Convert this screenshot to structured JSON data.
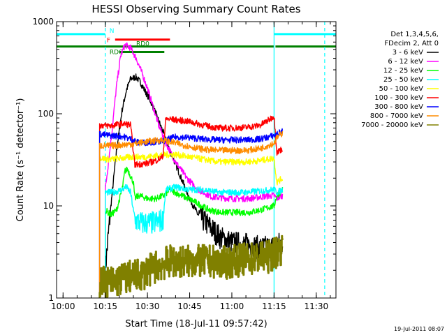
{
  "chart_data": {
    "type": "line",
    "title": "HESSI Observing Summary Count Rates",
    "xlabel": "Start Time (18-Jul-11 09:57:42)",
    "ylabel": "Count Rate (s⁻¹ detector⁻¹)",
    "xlim": [
      "09:57:42",
      "11:37:00"
    ],
    "ylim": [
      1,
      1000
    ],
    "y_scale": "log",
    "x_tick_labels": [
      "10:00",
      "10:15",
      "10:30",
      "10:45",
      "11:00",
      "11:15",
      "11:30"
    ],
    "x_tick_times": [
      "10:00",
      "10:15",
      "10:30",
      "10:45",
      "11:00",
      "11:15",
      "11:30"
    ],
    "y_tick_labels": [
      "1",
      "10",
      "100",
      "1000"
    ],
    "y_tick_values": [
      1,
      10,
      100,
      1000
    ],
    "grid": false,
    "legend_placement": "right",
    "legend_header": [
      "Det 1,3,4,5,6,",
      "FDecim 2, Att 0"
    ],
    "footer": "19-Jul-2011 08:07",
    "flags": [
      {
        "label": "N",
        "color": "#00ffff",
        "level": 0.955,
        "segments": [
          [
            "09:57:42",
            "10:15:00"
          ],
          [
            "11:15:00",
            "11:37:00"
          ]
        ]
      },
      {
        "label": "F",
        "color": "#ff0000",
        "level": 0.935,
        "segments": [
          [
            "10:18:30",
            "10:38:00"
          ]
        ]
      },
      {
        "label": "RD0",
        "color": "#008000",
        "level": 0.91,
        "segments": [
          [
            "09:57:42",
            "11:15:00"
          ],
          [
            "11:15:30",
            "11:37:00"
          ]
        ]
      },
      {
        "label": "RD6",
        "color": "#008000",
        "level": 0.89,
        "segments": [
          [
            "10:20:00",
            "10:36:00"
          ]
        ]
      }
    ],
    "vlines": [
      {
        "time": "10:15:00",
        "color": "#00ffff",
        "style": "dashed"
      },
      {
        "time": "11:15:00",
        "color": "#00ffff",
        "style": "solid"
      },
      {
        "time": "11:33:00",
        "color": "#00ffff",
        "style": "dashed"
      }
    ],
    "series": [
      {
        "name": "3 - 6 keV",
        "color": "#000000",
        "width": 1.4,
        "points": [
          [
            "10:15:00",
            2
          ],
          [
            "10:17:00",
            10
          ],
          [
            "10:19:00",
            40
          ],
          [
            "10:21:00",
            110
          ],
          [
            "10:22:30",
            180
          ],
          [
            "10:24:00",
            240
          ],
          [
            "10:26:00",
            250
          ],
          [
            "10:27:30",
            220
          ],
          [
            "10:29:00",
            180
          ],
          [
            "10:31:00",
            140
          ],
          [
            "10:33:00",
            100
          ],
          [
            "10:35:00",
            70
          ],
          [
            "10:38:00",
            40
          ],
          [
            "10:42:00",
            20
          ],
          [
            "10:45:00",
            12
          ],
          [
            "10:48:00",
            8
          ],
          [
            "10:52:00",
            6
          ],
          [
            "10:56:00",
            4.5
          ],
          [
            "11:00:00",
            4
          ],
          [
            "11:05:00",
            3.8
          ],
          [
            "11:10:00",
            3.5
          ],
          [
            "11:15:00",
            3.6
          ],
          [
            "11:16:00",
            3.8
          ],
          [
            "11:18:00",
            4
          ]
        ]
      },
      {
        "name": "6 - 12 keV",
        "color": "#ff00ff",
        "width": 1.4,
        "points": [
          [
            "10:15:00",
            15
          ],
          [
            "10:17:00",
            50
          ],
          [
            "10:19:00",
            200
          ],
          [
            "10:20:30",
            430
          ],
          [
            "10:22:00",
            560
          ],
          [
            "10:24:00",
            520
          ],
          [
            "10:26:00",
            400
          ],
          [
            "10:28:00",
            280
          ],
          [
            "10:30:00",
            190
          ],
          [
            "10:32:00",
            120
          ],
          [
            "10:34:00",
            75
          ],
          [
            "10:37:00",
            45
          ],
          [
            "10:40:00",
            30
          ],
          [
            "10:44:00",
            20
          ],
          [
            "10:48:00",
            15
          ],
          [
            "10:53:00",
            12.5
          ],
          [
            "11:00:00",
            12
          ],
          [
            "11:06:00",
            12
          ],
          [
            "11:10:00",
            12.5
          ],
          [
            "11:15:00",
            13
          ],
          [
            "11:16:00",
            12
          ],
          [
            "11:18:00",
            13
          ]
        ]
      },
      {
        "name": "12 - 25 keV",
        "color": "#00ff00",
        "width": 1.4,
        "points": [
          [
            "10:15:00",
            9
          ],
          [
            "10:17:00",
            8
          ],
          [
            "10:19:00",
            9
          ],
          [
            "10:21:00",
            15
          ],
          [
            "10:22:00",
            24
          ],
          [
            "10:23:00",
            25
          ],
          [
            "10:24:00",
            21
          ],
          [
            "10:25:00",
            18
          ],
          [
            "10:25:30",
            12
          ],
          [
            "10:27:00",
            13
          ],
          [
            "10:30:00",
            12
          ],
          [
            "10:33:00",
            12
          ],
          [
            "10:36:00",
            13
          ],
          [
            "10:38:00",
            15
          ],
          [
            "10:42:00",
            13
          ],
          [
            "10:47:00",
            11
          ],
          [
            "10:52:00",
            9
          ],
          [
            "10:56:00",
            8.5
          ],
          [
            "11:00:00",
            8.5
          ],
          [
            "11:06:00",
            8.5
          ],
          [
            "11:10:00",
            9
          ],
          [
            "11:15:00",
            10
          ],
          [
            "11:16:00",
            13
          ],
          [
            "11:18:00",
            15
          ]
        ]
      },
      {
        "name": "25 - 50 keV",
        "color": "#00ffff",
        "width": 1.4,
        "points": [
          [
            "10:15:00",
            14
          ],
          [
            "10:18:00",
            14
          ],
          [
            "10:21:00",
            15
          ],
          [
            "10:22:30",
            16
          ],
          [
            "10:24:00",
            14
          ],
          [
            "10:25:30",
            7
          ],
          [
            "10:28:00",
            6.5
          ],
          [
            "10:32:00",
            6.5
          ],
          [
            "10:35:30",
            7
          ],
          [
            "10:36:30",
            15
          ],
          [
            "10:40:00",
            16
          ],
          [
            "10:45:00",
            15
          ],
          [
            "10:50:00",
            15
          ],
          [
            "10:55:00",
            14
          ],
          [
            "11:00:00",
            14
          ],
          [
            "11:05:00",
            14
          ],
          [
            "11:10:00",
            14.5
          ],
          [
            "11:15:00",
            15
          ],
          [
            "11:16:00",
            14
          ],
          [
            "11:18:00",
            15
          ]
        ]
      },
      {
        "name": "50 - 100 keV",
        "color": "#ffff00",
        "width": 1.4,
        "points": [
          [
            "10:13:00",
            33
          ],
          [
            "10:17:00",
            32
          ],
          [
            "10:21:00",
            33
          ],
          [
            "10:25:00",
            34
          ],
          [
            "10:30:00",
            34
          ],
          [
            "10:35:00",
            36
          ],
          [
            "10:40:00",
            36
          ],
          [
            "10:45:00",
            34
          ],
          [
            "10:50:00",
            32
          ],
          [
            "10:55:00",
            30
          ],
          [
            "11:00:00",
            30
          ],
          [
            "11:05:00",
            30
          ],
          [
            "11:10:00",
            31
          ],
          [
            "11:15:00",
            33
          ],
          [
            "11:16:00",
            18
          ],
          [
            "11:18:00",
            20
          ]
        ]
      },
      {
        "name": "100 - 300 keV",
        "color": "#ff0000",
        "width": 1.4,
        "points": [
          [
            "10:13:00",
            75
          ],
          [
            "10:17:00",
            74
          ],
          [
            "10:21:00",
            78
          ],
          [
            "10:24:00",
            76
          ],
          [
            "10:25:30",
            28
          ],
          [
            "10:30:00",
            29
          ],
          [
            "10:33:00",
            31
          ],
          [
            "10:35:30",
            34
          ],
          [
            "10:36:30",
            88
          ],
          [
            "10:40:00",
            86
          ],
          [
            "10:45:00",
            82
          ],
          [
            "10:50:00",
            75
          ],
          [
            "10:55:00",
            70
          ],
          [
            "11:00:00",
            70
          ],
          [
            "11:05:00",
            71
          ],
          [
            "11:10:00",
            75
          ],
          [
            "11:13:00",
            85
          ],
          [
            "11:15:00",
            95
          ],
          [
            "11:16:00",
            38
          ],
          [
            "11:18:00",
            42
          ]
        ]
      },
      {
        "name": "300 - 800 keV",
        "color": "#0000ff",
        "width": 1.4,
        "points": [
          [
            "10:13:00",
            60
          ],
          [
            "10:17:00",
            58
          ],
          [
            "10:21:00",
            57
          ],
          [
            "10:25:00",
            52
          ],
          [
            "10:27:00",
            48
          ],
          [
            "10:30:00",
            49
          ],
          [
            "10:35:00",
            50
          ],
          [
            "10:40:00",
            56
          ],
          [
            "10:45:00",
            55
          ],
          [
            "10:50:00",
            53
          ],
          [
            "10:55:00",
            52
          ],
          [
            "11:00:00",
            52
          ],
          [
            "11:05:00",
            52
          ],
          [
            "11:10:00",
            53
          ],
          [
            "11:15:00",
            58
          ],
          [
            "11:16:00",
            60
          ],
          [
            "11:18:00",
            65
          ]
        ]
      },
      {
        "name": "800 - 7000 keV",
        "color": "#ff8c00",
        "width": 1.4,
        "points": [
          [
            "10:13:00",
            45
          ],
          [
            "10:17:00",
            45
          ],
          [
            "10:21:00",
            46
          ],
          [
            "10:25:00",
            47
          ],
          [
            "10:30:00",
            50
          ],
          [
            "10:35:00",
            52
          ],
          [
            "10:40:00",
            48
          ],
          [
            "10:45:00",
            44
          ],
          [
            "10:50:00",
            41
          ],
          [
            "10:55:00",
            40
          ],
          [
            "11:00:00",
            40
          ],
          [
            "11:05:00",
            40
          ],
          [
            "11:10:00",
            42
          ],
          [
            "11:15:00",
            48
          ],
          [
            "11:16:00",
            55
          ],
          [
            "11:18:00",
            62
          ]
        ]
      },
      {
        "name": "7000 - 20000 keV",
        "color": "#808000",
        "width": 2.6,
        "points": [
          [
            "10:13:00",
            1.5
          ],
          [
            "10:18:00",
            1.5
          ],
          [
            "10:23:00",
            1.7
          ],
          [
            "10:28:00",
            1.8
          ],
          [
            "10:33:00",
            2.2
          ],
          [
            "10:38:00",
            2.5
          ],
          [
            "10:43:00",
            2.5
          ],
          [
            "10:48:00",
            2.5
          ],
          [
            "10:53:00",
            2.5
          ],
          [
            "10:58:00",
            2.4
          ],
          [
            "11:03:00",
            2.6
          ],
          [
            "11:08:00",
            2.7
          ],
          [
            "11:13:00",
            2.8
          ],
          [
            "11:16:00",
            3.2
          ],
          [
            "11:18:00",
            3.5
          ]
        ]
      }
    ]
  }
}
